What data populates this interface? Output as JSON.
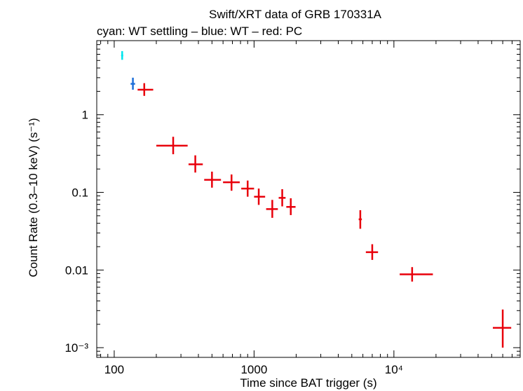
{
  "chart_data": {
    "type": "scatter",
    "title": "Swift/XRT data of GRB 170331A",
    "subtitle": "cyan: WT settling – blue: WT – red: PC",
    "xlabel": "Time since BAT trigger (s)",
    "ylabel": "Count Rate (0.3–10 keV) (s⁻¹)",
    "xscale": "log",
    "yscale": "log",
    "xlim": [
      75,
      80000
    ],
    "ylim": [
      0.00075,
      9
    ],
    "grid": false,
    "x_ticks": [
      {
        "value": 100,
        "label": "100"
      },
      {
        "value": 1000,
        "label": "1000"
      },
      {
        "value": 10000,
        "label": "10⁴"
      }
    ],
    "y_ticks": [
      {
        "value": 1,
        "label": "1"
      },
      {
        "value": 0.1,
        "label": "0.1"
      },
      {
        "value": 0.01,
        "label": "0.01"
      },
      {
        "value": 0.001,
        "label": "10⁻³"
      }
    ],
    "series": [
      {
        "name": "WT settling",
        "color": "#00e5ee",
        "points": [
          {
            "x": 114,
            "xlo": 112,
            "xhi": 116,
            "y": 5.8,
            "ylo": 5.1,
            "yhi": 6.6
          }
        ]
      },
      {
        "name": "WT",
        "color": "#1e6fd9",
        "points": [
          {
            "x": 136,
            "xlo": 131,
            "xhi": 141,
            "y": 2.5,
            "ylo": 2.1,
            "yhi": 3.0
          }
        ]
      },
      {
        "name": "PC",
        "color": "#e8000b",
        "points": [
          {
            "x": 164,
            "xlo": 147,
            "xhi": 190,
            "y": 2.1,
            "ylo": 1.75,
            "yhi": 2.55
          },
          {
            "x": 264,
            "xlo": 200,
            "xhi": 335,
            "y": 0.4,
            "ylo": 0.31,
            "yhi": 0.52
          },
          {
            "x": 380,
            "xlo": 340,
            "xhi": 430,
            "y": 0.23,
            "ylo": 0.18,
            "yhi": 0.3
          },
          {
            "x": 500,
            "xlo": 440,
            "xhi": 580,
            "y": 0.145,
            "ylo": 0.115,
            "yhi": 0.185
          },
          {
            "x": 690,
            "xlo": 600,
            "xhi": 790,
            "y": 0.135,
            "ylo": 0.105,
            "yhi": 0.17
          },
          {
            "x": 900,
            "xlo": 810,
            "xhi": 1000,
            "y": 0.112,
            "ylo": 0.088,
            "yhi": 0.142
          },
          {
            "x": 1080,
            "xlo": 1000,
            "xhi": 1200,
            "y": 0.088,
            "ylo": 0.069,
            "yhi": 0.112
          },
          {
            "x": 1350,
            "xlo": 1220,
            "xhi": 1480,
            "y": 0.061,
            "ylo": 0.047,
            "yhi": 0.08
          },
          {
            "x": 1590,
            "xlo": 1500,
            "xhi": 1680,
            "y": 0.085,
            "ylo": 0.066,
            "yhi": 0.11
          },
          {
            "x": 1830,
            "xlo": 1700,
            "xhi": 1980,
            "y": 0.065,
            "ylo": 0.051,
            "yhi": 0.084
          },
          {
            "x": 5750,
            "xlo": 5600,
            "xhi": 5900,
            "y": 0.045,
            "ylo": 0.034,
            "yhi": 0.059
          },
          {
            "x": 7000,
            "xlo": 6300,
            "xhi": 7700,
            "y": 0.017,
            "ylo": 0.0135,
            "yhi": 0.0215
          },
          {
            "x": 13500,
            "xlo": 11000,
            "xhi": 19000,
            "y": 0.0088,
            "ylo": 0.0071,
            "yhi": 0.0109
          },
          {
            "x": 60000,
            "xlo": 51000,
            "xhi": 69000,
            "y": 0.0018,
            "ylo": 0.001,
            "yhi": 0.0031
          }
        ]
      }
    ]
  }
}
